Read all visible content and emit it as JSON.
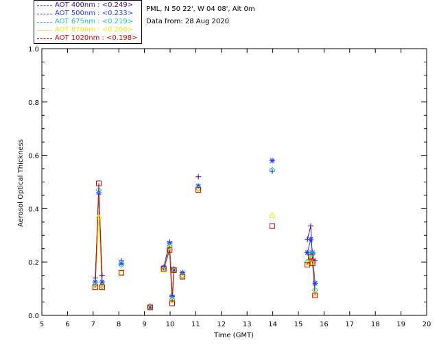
{
  "header": {
    "location": "PML, N 50 22', W 04 08', Alt 0m",
    "date": "Data from: 28 Aug 2020"
  },
  "legend": [
    {
      "label": "AOT  400nm : <0.249>",
      "color": "#3a0a8a"
    },
    {
      "label": "AOT  500nm : <0.233>",
      "color": "#1e3cff"
    },
    {
      "label": "AOT  675nm : <0.219>",
      "color": "#19c8a0"
    },
    {
      "label": "AOT  870nm : <0.200>",
      "color": "#f2e600"
    },
    {
      "label": "AOT 1020nm : <0.198>",
      "color": "#cc0000"
    }
  ],
  "chart_data": {
    "type": "line",
    "xlabel": "Time (GMT)",
    "ylabel": "Aerosol Optical Thickness",
    "xlim": [
      5,
      20
    ],
    "ylim": [
      0.0,
      1.0
    ],
    "xticks": [
      5,
      6,
      7,
      8,
      9,
      10,
      11,
      12,
      13,
      14,
      15,
      16,
      17,
      18,
      19,
      20
    ],
    "yticks": [
      "0.0",
      "0.2",
      "0.4",
      "0.6",
      "0.8",
      "1.0"
    ],
    "grid": false,
    "legend_position": "top-left, outside plot",
    "segments": [
      {
        "x": [
          7.08,
          7.22,
          7.35
        ]
      },
      {
        "x": [
          8.1
        ]
      },
      {
        "x": [
          9.22
        ]
      },
      {
        "x": [
          9.75,
          9.98,
          10.08,
          10.15
        ]
      },
      {
        "x": [
          10.48
        ]
      },
      {
        "x": [
          11.1
        ]
      },
      {
        "x": [
          13.98
        ]
      },
      {
        "x": [
          15.35,
          15.48,
          15.55,
          15.65
        ]
      }
    ],
    "series": [
      {
        "name": "AOT  400nm",
        "marker": "plus",
        "color": "#3a0a8a",
        "values": [
          [
            0.14,
            0.46,
            0.15
          ],
          [
            0.205
          ],
          [
            0.035
          ],
          [
            0.18,
            0.275,
            0.075,
            0.175
          ],
          [
            0.16
          ],
          [
            0.52
          ],
          [
            0.54
          ],
          [
            0.285,
            0.335,
            0.21,
            0.205
          ]
        ]
      },
      {
        "name": "AOT  500nm",
        "marker": "asterisk",
        "color": "#1e3cff",
        "values": [
          [
            0.125,
            0.46,
            0.125
          ],
          [
            0.195
          ],
          [
            0.03
          ],
          [
            0.18,
            0.27,
            0.07,
            0.17
          ],
          [
            0.16
          ],
          [
            0.485
          ],
          [
            0.58
          ],
          [
            0.235,
            0.285,
            0.235,
            0.12
          ]
        ]
      },
      {
        "name": "AOT  675nm",
        "marker": "diamond",
        "color": "#19c8a0",
        "values": [
          [
            0.115,
            0.47,
            0.11
          ],
          [
            0.19
          ],
          [
            0.03
          ],
          [
            0.175,
            0.26,
            0.06,
            0.17
          ],
          [
            0.15
          ],
          [
            0.475
          ],
          [
            0.545
          ],
          [
            0.2,
            0.23,
            0.23,
            0.095
          ]
        ]
      },
      {
        "name": "AOT  870nm",
        "marker": "triangle",
        "color": "#f2e600",
        "values": [
          [
            0.105,
            0.37,
            0.105
          ],
          [
            0.16
          ],
          [
            0.03
          ],
          [
            0.17,
            0.255,
            0.055,
            0.17
          ],
          [
            0.145
          ],
          [
            0.47
          ],
          [
            0.375
          ],
          [
            0.195,
            0.21,
            0.2,
            0.08
          ]
        ]
      },
      {
        "name": "AOT 1020nm",
        "marker": "square",
        "color": "#cc0000",
        "values": [
          [
            0.105,
            0.495,
            0.105
          ],
          [
            0.16
          ],
          [
            0.03
          ],
          [
            0.175,
            0.245,
            0.045,
            0.17
          ],
          [
            0.145
          ],
          [
            0.47
          ],
          [
            0.335
          ],
          [
            0.19,
            0.22,
            0.195,
            0.075
          ]
        ]
      }
    ]
  }
}
